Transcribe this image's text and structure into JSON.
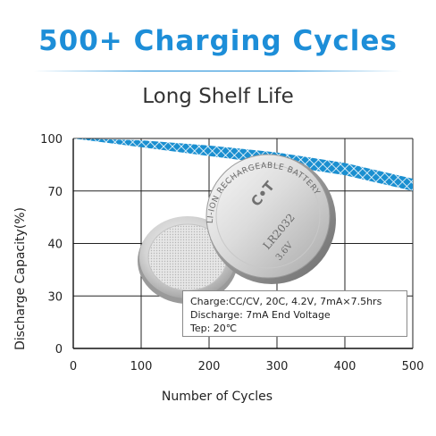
{
  "header": {
    "title": "500+ Charging Cycles",
    "subtitle": "Long Shelf Life"
  },
  "battery": {
    "brand": "C•T",
    "model": "LR2032",
    "voltage": "3.6V",
    "ring_text": "LI-ION RECHARGEABLE BATTERY"
  },
  "conditions": {
    "line1": "Charge:CC/CV, 20C, 4.2V, 7mA×7.5hrs",
    "line2": "Discharge: 7mA End Voltage",
    "line3": "Tep: 20℃"
  },
  "colors": {
    "band": "#1a8fd0",
    "grid": "#222222",
    "accent": "#1d8ed8"
  },
  "chart_data": {
    "type": "area",
    "title": "",
    "xlabel": "Number of Cycles",
    "ylabel": "Discharge Capacity(%)",
    "x_ticks": [
      0,
      100,
      200,
      300,
      400,
      500
    ],
    "y_ticks": [
      0,
      30,
      40,
      70,
      100
    ],
    "xlim": [
      0,
      500
    ],
    "grid": true,
    "series": [
      {
        "x": [
          0,
          100,
          200,
          300,
          400,
          500
        ],
        "upper": [
          100,
          99,
          96,
          92,
          86,
          77
        ],
        "lower": [
          100,
          95,
          90,
          85,
          79,
          70
        ]
      }
    ]
  }
}
